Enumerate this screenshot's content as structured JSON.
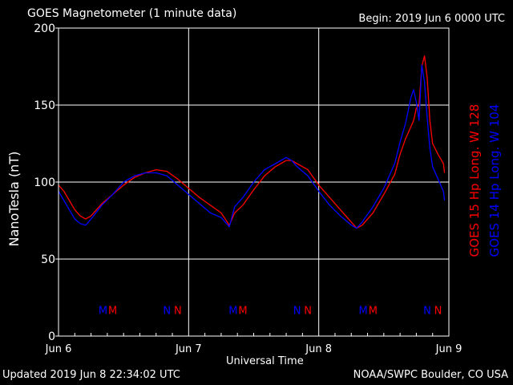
{
  "header": {
    "title": "GOES Magnetometer (1 minute data)",
    "begin": "Begin:  2019 Jun 6 0000 UTC"
  },
  "footer": {
    "updated": "Updated 2019 Jun  8 22:34:02 UTC",
    "credit": "NOAA/SWPC Boulder, CO USA"
  },
  "colors": {
    "goes15": "#ff0000",
    "goes14": "#0000ff",
    "background": "#000000",
    "grid": "#ffffff"
  },
  "chart_data": {
    "type": "line",
    "xlabel": "Universal Time",
    "ylabel": "NanoTesla (nT)",
    "xlim": [
      0,
      72
    ],
    "ylim": [
      0,
      200
    ],
    "x_units": "hours since 2019 Jun 6 0000 UTC",
    "xticks": [
      {
        "x": 0,
        "label": "Jun 6"
      },
      {
        "x": 24,
        "label": "Jun 7"
      },
      {
        "x": 48,
        "label": "Jun 8"
      },
      {
        "x": 72,
        "label": "Jun 9"
      }
    ],
    "yticks": [
      0,
      50,
      100,
      150,
      200
    ],
    "grid": true,
    "series": [
      {
        "name": "GOES 15 Hp  Long. W 128",
        "color": "#ff0000",
        "x": [
          0,
          1,
          2,
          3,
          4,
          5,
          6,
          8,
          10,
          12,
          14,
          16,
          18,
          20,
          22,
          24,
          26,
          28,
          30,
          31.5,
          32.5,
          34,
          36,
          38,
          40,
          42,
          43,
          44,
          46,
          48,
          50,
          52,
          54,
          55,
          56,
          58,
          60,
          62,
          63,
          64,
          65,
          65.5,
          66,
          66.5,
          67,
          67.5,
          68,
          68.5,
          69,
          70,
          71,
          71.2
        ],
        "values": [
          98,
          94,
          88,
          82,
          78,
          76,
          78,
          86,
          92,
          98,
          103,
          106,
          108,
          107,
          102,
          96,
          90,
          85,
          80,
          72,
          80,
          85,
          95,
          104,
          110,
          114,
          114,
          112,
          108,
          98,
          90,
          82,
          74,
          70,
          72,
          80,
          92,
          105,
          118,
          128,
          136,
          140,
          148,
          150,
          175,
          182,
          168,
          140,
          125,
          118,
          112,
          106
        ]
      },
      {
        "name": "GOES 14 Hp  Long. W 104",
        "color": "#0000ff",
        "x": [
          0,
          1,
          2,
          3,
          4,
          5,
          6,
          8,
          10,
          12,
          14,
          16,
          18,
          20,
          22,
          24,
          26,
          28,
          30,
          31.5,
          32.5,
          34,
          36,
          38,
          40,
          42,
          43,
          44,
          46,
          48,
          50,
          52,
          54,
          55,
          56,
          58,
          60,
          62,
          63,
          64,
          65,
          65.5,
          66,
          66.5,
          67,
          67.5,
          68,
          68.5,
          69,
          70,
          71,
          71.2
        ],
        "values": [
          94,
          88,
          82,
          76,
          73,
          72,
          76,
          85,
          92,
          100,
          104,
          106,
          106,
          104,
          98,
          92,
          86,
          80,
          77,
          71,
          84,
          90,
          100,
          108,
          112,
          116,
          114,
          110,
          104,
          94,
          85,
          78,
          72,
          70,
          74,
          84,
          96,
          112,
          126,
          138,
          155,
          160,
          152,
          140,
          176,
          165,
          142,
          122,
          110,
          102,
          94,
          88
        ]
      }
    ],
    "annotations": [
      {
        "x": 8.2,
        "y": 17,
        "text": "M",
        "color": "#0000ff"
      },
      {
        "x": 10.0,
        "y": 17,
        "text": "M",
        "color": "#ff0000"
      },
      {
        "x": 20.0,
        "y": 17,
        "text": "N",
        "color": "#0000ff"
      },
      {
        "x": 22.0,
        "y": 17,
        "text": "N",
        "color": "#ff0000"
      },
      {
        "x": 32.2,
        "y": 17,
        "text": "M",
        "color": "#0000ff"
      },
      {
        "x": 34.0,
        "y": 17,
        "text": "M",
        "color": "#ff0000"
      },
      {
        "x": 44.0,
        "y": 17,
        "text": "N",
        "color": "#0000ff"
      },
      {
        "x": 46.0,
        "y": 17,
        "text": "N",
        "color": "#ff0000"
      },
      {
        "x": 56.2,
        "y": 17,
        "text": "M",
        "color": "#0000ff"
      },
      {
        "x": 58.0,
        "y": 17,
        "text": "M",
        "color": "#ff0000"
      },
      {
        "x": 68.0,
        "y": 17,
        "text": "N",
        "color": "#0000ff"
      },
      {
        "x": 70.0,
        "y": 17,
        "text": "N",
        "color": "#ff0000"
      }
    ]
  }
}
